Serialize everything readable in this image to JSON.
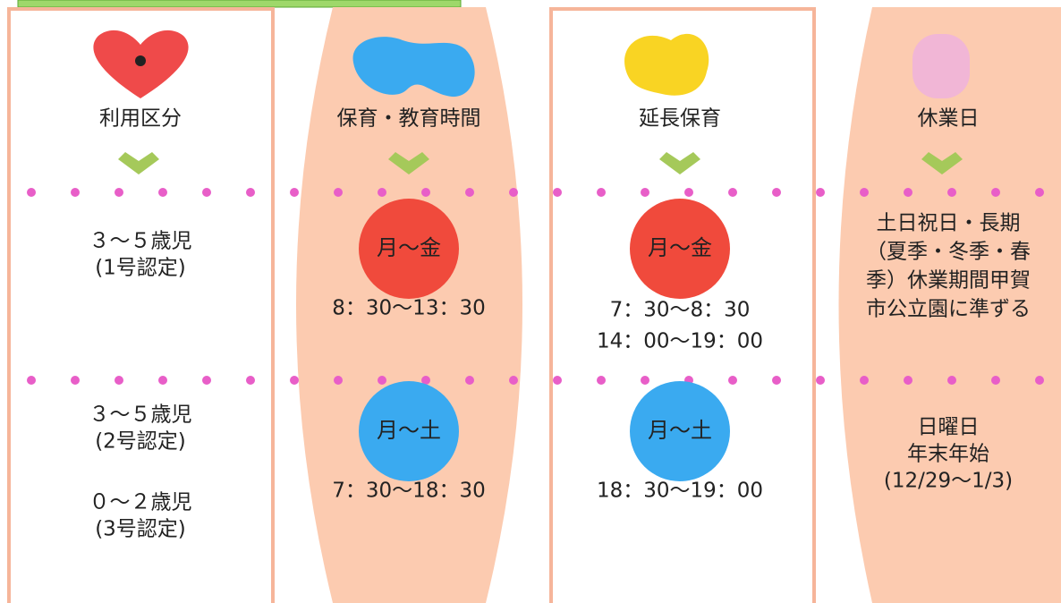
{
  "columns": [
    {
      "header": "利用区分",
      "row1": {
        "lines": [
          "３～５歳児",
          "(1号認定)"
        ]
      },
      "row2": {
        "lines": [
          "３～５歳児",
          "(2号認定)",
          "０～２歳児",
          "(3号認定)"
        ]
      }
    },
    {
      "header": "保育・教育時間",
      "row1": {
        "badge": "月～金",
        "lines": [
          "8：30～13：30"
        ]
      },
      "row2": {
        "badge": "月～土",
        "lines": [
          "7：30～18：30"
        ]
      }
    },
    {
      "header": "延長保育",
      "row1": {
        "badge": "月～金",
        "lines": [
          "7：30～8：30",
          "14：00～19：00"
        ]
      },
      "row2": {
        "badge": "月～土",
        "lines": [
          "18：30～19：00"
        ]
      }
    },
    {
      "header": "休業日",
      "row1": {
        "lines": [
          "土日祝日・長期",
          "（夏季・冬季・春",
          "季）休業期間甲賀",
          "市公立園に準ずる"
        ]
      },
      "row2": {
        "lines": [
          "日曜日",
          "年末年始",
          "(12/29～1/3)"
        ]
      }
    }
  ]
}
